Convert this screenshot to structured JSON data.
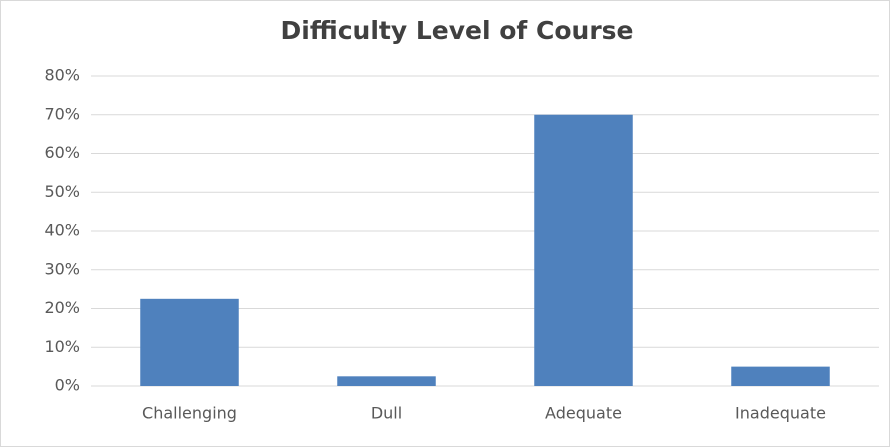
{
  "chart_data": {
    "type": "bar",
    "title": "Difficulty Level of Course",
    "categories": [
      "Challenging",
      "Dull",
      "Adequate",
      "Inadequate"
    ],
    "values": [
      22.5,
      2.5,
      70,
      5
    ],
    "color": "#4f81bd",
    "ylim": [
      0,
      80
    ],
    "yticks": [
      {
        "value": 0,
        "label": "0%"
      },
      {
        "value": 10,
        "label": "10%"
      },
      {
        "value": 20,
        "label": "20%"
      },
      {
        "value": 30,
        "label": "30%"
      },
      {
        "value": 40,
        "label": "40%"
      },
      {
        "value": 50,
        "label": "50%"
      },
      {
        "value": 60,
        "label": "60%"
      },
      {
        "value": 70,
        "label": "70%"
      },
      {
        "value": 80,
        "label": "80%"
      }
    ],
    "grid": true
  }
}
